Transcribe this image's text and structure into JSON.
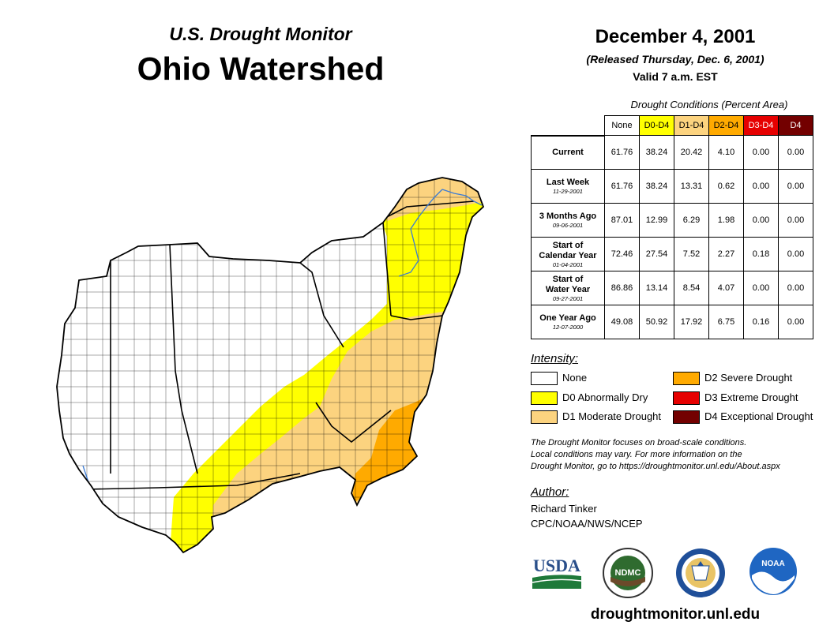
{
  "header": {
    "subtitle": "U.S. Drought Monitor",
    "title": "Ohio Watershed",
    "date": "December 4, 2001",
    "released": "(Released Thursday, Dec. 6, 2001)",
    "valid": "Valid 7 a.m. EST"
  },
  "table": {
    "title": "Drought Conditions (Percent Area)",
    "columns": [
      {
        "label": "None",
        "bg": "#ffffff",
        "fg": "#000000"
      },
      {
        "label": "D0-D4",
        "bg": "#ffff00",
        "fg": "#000000"
      },
      {
        "label": "D1-D4",
        "bg": "#fcd37f",
        "fg": "#000000"
      },
      {
        "label": "D2-D4",
        "bg": "#ffaa00",
        "fg": "#000000"
      },
      {
        "label": "D3-D4",
        "bg": "#e60000",
        "fg": "#ffffff"
      },
      {
        "label": "D4",
        "bg": "#730000",
        "fg": "#ffffff"
      }
    ],
    "rows": [
      {
        "label1": "Current",
        "label2": "",
        "date": "",
        "values": [
          "61.76",
          "38.24",
          "20.42",
          "4.10",
          "0.00",
          "0.00"
        ]
      },
      {
        "label1": "Last Week",
        "label2": "",
        "date": "11-29-2001",
        "values": [
          "61.76",
          "38.24",
          "13.31",
          "0.62",
          "0.00",
          "0.00"
        ]
      },
      {
        "label1": "3 Months Ago",
        "label2": "",
        "date": "09-06-2001",
        "values": [
          "87.01",
          "12.99",
          "6.29",
          "1.98",
          "0.00",
          "0.00"
        ]
      },
      {
        "label1": "Start of",
        "label2": "Calendar Year",
        "date": "01-04-2001",
        "values": [
          "72.46",
          "27.54",
          "7.52",
          "2.27",
          "0.18",
          "0.00"
        ]
      },
      {
        "label1": "Start of",
        "label2": "Water Year",
        "date": "09-27-2001",
        "values": [
          "86.86",
          "13.14",
          "8.54",
          "4.07",
          "0.00",
          "0.00"
        ]
      },
      {
        "label1": "One Year Ago",
        "label2": "",
        "date": "12-07-2000",
        "values": [
          "49.08",
          "50.92",
          "17.92",
          "6.75",
          "0.16",
          "0.00"
        ]
      }
    ]
  },
  "legend": {
    "title": "Intensity:",
    "items": [
      {
        "label": "None",
        "color": "#ffffff"
      },
      {
        "label": "D0 Abnormally Dry",
        "color": "#ffff00"
      },
      {
        "label": "D1 Moderate Drought",
        "color": "#fcd37f"
      },
      {
        "label": "D2 Severe Drought",
        "color": "#ffaa00"
      },
      {
        "label": "D3 Extreme Drought",
        "color": "#e60000"
      },
      {
        "label": "D4 Exceptional Drought",
        "color": "#730000"
      }
    ]
  },
  "note": {
    "line1": "The Drought Monitor focuses on broad-scale conditions.",
    "line2": "Local conditions may vary. For more information on the",
    "line3": "Drought Monitor, go to https://droughtmonitor.unl.edu/About.aspx"
  },
  "author": {
    "label": "Author:",
    "name": "Richard Tinker",
    "org": "CPC/NOAA/NWS/NCEP"
  },
  "logos": {
    "usda": "USDA",
    "ndmc": "NDMC",
    "noaa": "NOAA"
  },
  "footer": {
    "url": "droughtmonitor.unl.edu"
  }
}
